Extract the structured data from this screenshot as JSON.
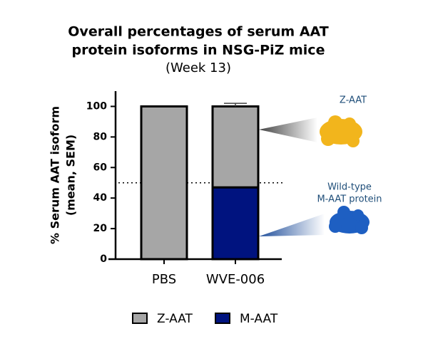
{
  "chart_data": {
    "type": "stacked_bar",
    "title": [
      "Overall percentages of serum AAT",
      "protein isoforms in NSG-PiZ mice"
    ],
    "subtitle": "(Week 13)",
    "y_label": [
      "% Serum AAT isoform",
      "(mean, SEM)"
    ],
    "categories": [
      "PBS",
      "WVE-006"
    ],
    "series": [
      {
        "name": "Z-AAT",
        "color": "#a6a6a6",
        "values": [
          100,
          53
        ],
        "errors": [
          null,
          2
        ]
      },
      {
        "name": "M-AAT",
        "color": "#00137f",
        "values": [
          0,
          47
        ],
        "errors": [
          null,
          2
        ]
      }
    ],
    "ylim": [
      0,
      110
    ],
    "yticks": [
      0,
      20,
      40,
      60,
      80,
      100
    ],
    "hline": 50,
    "annotations": [
      "Z-AAT",
      "Wild-type",
      "M-AAT protein"
    ]
  }
}
